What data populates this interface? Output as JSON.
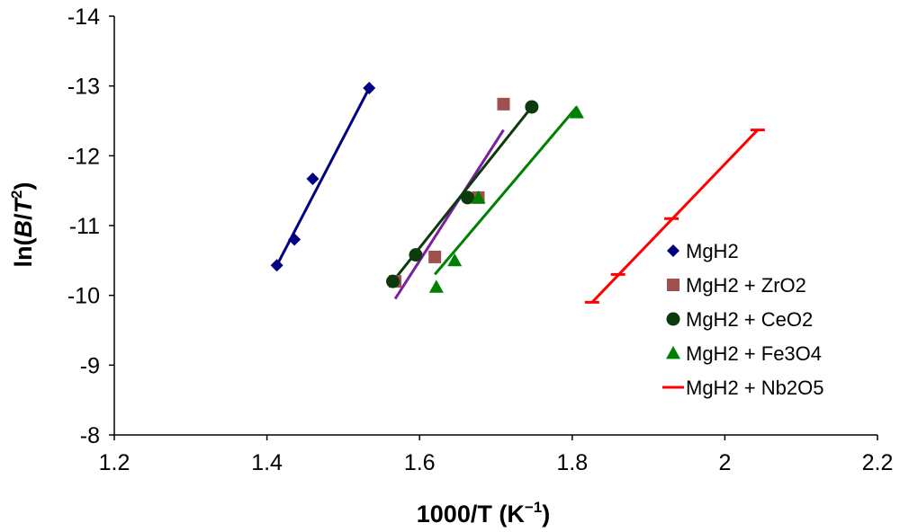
{
  "chart_data": {
    "type": "scatter",
    "title": "",
    "xlabel": {
      "main": "1000/T (K",
      "sup": "−1",
      "tail": ")"
    },
    "ylabel": {
      "pre": "ln(",
      "b": "B",
      "slash": "/",
      "t": "T",
      "sup": "2",
      "post": ")"
    },
    "xlim": [
      1.2,
      2.2
    ],
    "ylim": [
      -8,
      -14
    ],
    "x_ticks": [
      1.2,
      1.4,
      1.6,
      1.8,
      2.0,
      2.2
    ],
    "x_tick_labels": [
      "1.2",
      "1.4",
      "1.6",
      "1.8",
      "2",
      "2.2"
    ],
    "y_ticks": [
      -8,
      -9,
      -10,
      -11,
      -12,
      -13,
      -14
    ],
    "y_tick_labels": [
      "-8",
      "-9",
      "-10",
      "-11",
      "-12",
      "-13",
      "-14"
    ],
    "grid": false,
    "legend_position": "right",
    "series": [
      {
        "name": "MgH2",
        "color": "#000080",
        "marker": "diamond",
        "points": [
          [
            1.413,
            -10.43
          ],
          [
            1.436,
            -10.8
          ],
          [
            1.46,
            -11.67
          ],
          [
            1.534,
            -12.97
          ]
        ],
        "fit": [
          [
            1.413,
            -10.43
          ],
          [
            1.534,
            -12.97
          ]
        ]
      },
      {
        "name": "MgH2 + ZrO2",
        "color": "#A0504F",
        "marker": "square",
        "points": [
          [
            1.568,
            -10.2
          ],
          [
            1.62,
            -10.55
          ],
          [
            1.677,
            -11.4
          ],
          [
            1.71,
            -12.74
          ]
        ],
        "fit": [
          [
            1.568,
            -9.95
          ],
          [
            1.71,
            -12.37
          ]
        ],
        "fit_color": "#7B1FA2"
      },
      {
        "name": "MgH2 + CeO2",
        "color": "#0D3A0D",
        "marker": "circle",
        "points": [
          [
            1.565,
            -10.2
          ],
          [
            1.595,
            -10.58
          ],
          [
            1.663,
            -11.4
          ],
          [
            1.747,
            -12.7
          ]
        ],
        "fit": [
          [
            1.565,
            -10.2
          ],
          [
            1.747,
            -12.7
          ]
        ]
      },
      {
        "name": "MgH2 + Fe3O4",
        "color": "#008000",
        "marker": "triangle",
        "points": [
          [
            1.622,
            -10.12
          ],
          [
            1.646,
            -10.5
          ],
          [
            1.677,
            -11.4
          ],
          [
            1.806,
            -12.62
          ]
        ],
        "fit": [
          [
            1.62,
            -10.3
          ],
          [
            1.806,
            -12.7
          ]
        ]
      },
      {
        "name": "MgH2 + Nb2O5",
        "color": "#FF0000",
        "marker": "dash",
        "points": [
          [
            1.826,
            -9.9
          ],
          [
            1.86,
            -10.3
          ],
          [
            1.93,
            -11.1
          ],
          [
            2.043,
            -12.37
          ]
        ],
        "fit": [
          [
            1.826,
            -9.9
          ],
          [
            2.043,
            -12.37
          ]
        ]
      }
    ]
  }
}
